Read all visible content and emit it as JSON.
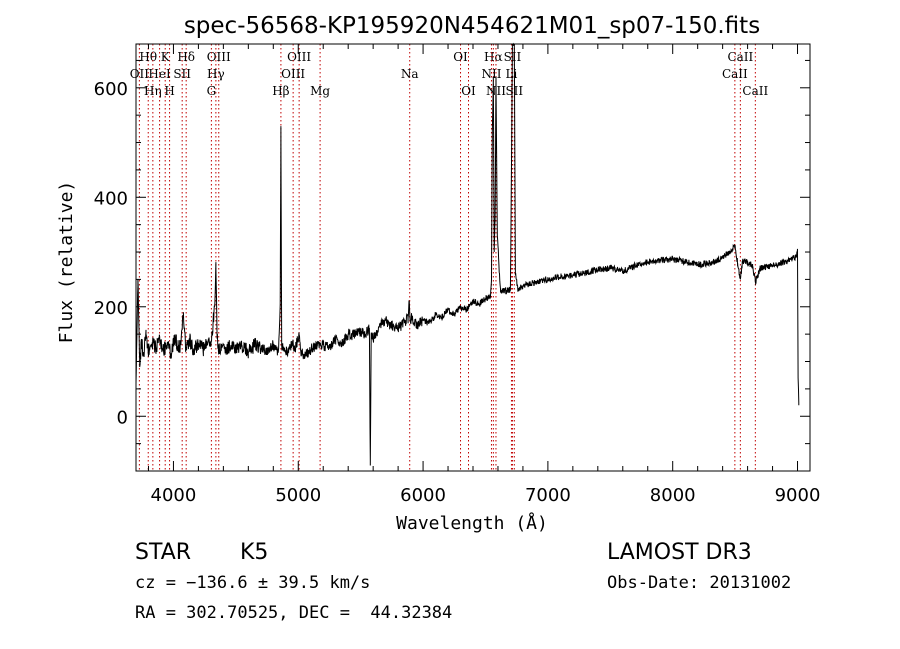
{
  "chart_data": {
    "type": "line",
    "title": "spec-56568-KP195920N454621M01_sp07-150.fits",
    "xlabel": "Wavelength (Å)",
    "ylabel": "Flux (relative)",
    "xlim": [
      3700,
      9100
    ],
    "ylim": [
      -100,
      680
    ],
    "xticks": [
      4000,
      5000,
      6000,
      7000,
      8000,
      9000
    ],
    "xtick_labels": [
      "4000",
      "5000",
      "6000",
      "7000",
      "8000",
      "9000"
    ],
    "yticks": [
      0,
      200,
      400,
      600
    ],
    "ytick_labels": [
      "0",
      "200",
      "400",
      "600"
    ],
    "series": [
      {
        "name": "flux",
        "x": [
          3700,
          3715,
          3730,
          3745,
          3760,
          3780,
          3800,
          3830,
          3860,
          3890,
          3920,
          3950,
          3980,
          4010,
          4040,
          4060,
          4080,
          4100,
          4130,
          4160,
          4200,
          4240,
          4280,
          4300,
          4330,
          4340,
          4350,
          4360,
          4380,
          4420,
          4460,
          4500,
          4550,
          4600,
          4650,
          4700,
          4750,
          4800,
          4840,
          4855,
          4861,
          4867,
          4880,
          4920,
          4958,
          4970,
          5007,
          5020,
          5050,
          5100,
          5150,
          5200,
          5250,
          5300,
          5350,
          5400,
          5450,
          5500,
          5540,
          5570,
          5577,
          5584,
          5600,
          5650,
          5700,
          5750,
          5800,
          5850,
          5880,
          5890,
          5896,
          5905,
          5950,
          6000,
          6050,
          6100,
          6150,
          6200,
          6250,
          6300,
          6350,
          6400,
          6450,
          6500,
          6540,
          6548,
          6555,
          6563,
          6570,
          6577,
          6584,
          6595,
          6620,
          6680,
          6700,
          6716,
          6722,
          6731,
          6740,
          6760,
          6800,
          6900,
          7000,
          7100,
          7200,
          7300,
          7400,
          7500,
          7600,
          7700,
          7800,
          7900,
          8000,
          8100,
          8200,
          8300,
          8400,
          8450,
          8498,
          8520,
          8542,
          8560,
          8600,
          8640,
          8662,
          8700,
          8800,
          8900,
          8990,
          9000,
          9005,
          9010
        ],
        "values": [
          60,
          250,
          90,
          140,
          110,
          150,
          120,
          135,
          125,
          140,
          120,
          130,
          115,
          145,
          125,
          130,
          190,
          120,
          140,
          118,
          132,
          122,
          140,
          130,
          200,
          270,
          150,
          120,
          128,
          120,
          130,
          122,
          128,
          118,
          130,
          124,
          120,
          130,
          118,
          200,
          530,
          130,
          120,
          118,
          140,
          120,
          150,
          118,
          110,
          122,
          128,
          130,
          125,
          140,
          132,
          150,
          148,
          155,
          150,
          160,
          -90,
          150,
          140,
          165,
          175,
          165,
          160,
          170,
          180,
          210,
          175,
          180,
          165,
          175,
          170,
          185,
          180,
          195,
          185,
          200,
          195,
          210,
          205,
          215,
          220,
          250,
          520,
          620,
          300,
          360,
          620,
          330,
          228,
          230,
          232,
          680,
          680,
          680,
          260,
          232,
          238,
          246,
          250,
          255,
          258,
          262,
          268,
          270,
          265,
          275,
          282,
          285,
          287,
          283,
          277,
          280,
          290,
          300,
          310,
          280,
          250,
          285,
          280,
          275,
          245,
          270,
          275,
          283,
          290,
          300,
          70,
          20
        ],
        "color": "#000000"
      }
    ],
    "lines": [
      {
        "label": "Hθ",
        "wavelength": 3798,
        "row": 1
      },
      {
        "label": "OII",
        "wavelength": 3727,
        "row": 2
      },
      {
        "label": "Hη",
        "wavelength": 3835,
        "row": 3
      },
      {
        "label": "K",
        "wavelength": 3934,
        "row": 1
      },
      {
        "label": "HeI",
        "wavelength": 3889,
        "row": 2
      },
      {
        "label": "SII",
        "wavelength": 4070,
        "row": 2
      },
      {
        "label": "Hδ",
        "wavelength": 4102,
        "row": 1
      },
      {
        "label": "H",
        "wavelength": 3969,
        "row": 3
      },
      {
        "label": "OIII",
        "wavelength": 4363,
        "row": 1
      },
      {
        "label": "Hγ",
        "wavelength": 4340,
        "row": 2
      },
      {
        "label": "G",
        "wavelength": 4304,
        "row": 3
      },
      {
        "label": "Hβ",
        "wavelength": 4861,
        "row": 3
      },
      {
        "label": "OIII",
        "wavelength": 5007,
        "row": 1
      },
      {
        "label": "OIII",
        "wavelength": 4959,
        "row": 2
      },
      {
        "label": "Mg",
        "wavelength": 5175,
        "row": 3
      },
      {
        "label": "Na",
        "wavelength": 5893,
        "row": 2
      },
      {
        "label": "OI",
        "wavelength": 6300,
        "row": 1
      },
      {
        "label": "OI",
        "wavelength": 6364,
        "row": 3
      },
      {
        "label": "Hα",
        "wavelength": 6563,
        "row": 1
      },
      {
        "label": "NII",
        "wavelength": 6548,
        "row": 2
      },
      {
        "label": "NII",
        "wavelength": 6584,
        "row": 3
      },
      {
        "label": "SII",
        "wavelength": 6716,
        "row": 1
      },
      {
        "label": "Li",
        "wavelength": 6708,
        "row": 2
      },
      {
        "label": "SII",
        "wavelength": 6731,
        "row": 3
      },
      {
        "label": "CaII",
        "wavelength": 8542,
        "row": 1
      },
      {
        "label": "CaII",
        "wavelength": 8498,
        "row": 2
      },
      {
        "label": "CaII",
        "wavelength": 8662,
        "row": 3
      }
    ],
    "grid": false,
    "legend": "none"
  },
  "info": {
    "class": "STAR",
    "subclass": "K5",
    "survey": "LAMOST DR3",
    "cz": "cz = −136.6 ± 39.5 km/s",
    "obs_date": "Obs-Date: 20131002",
    "coords": "RA = 302.70525, DEC =  44.32384"
  }
}
